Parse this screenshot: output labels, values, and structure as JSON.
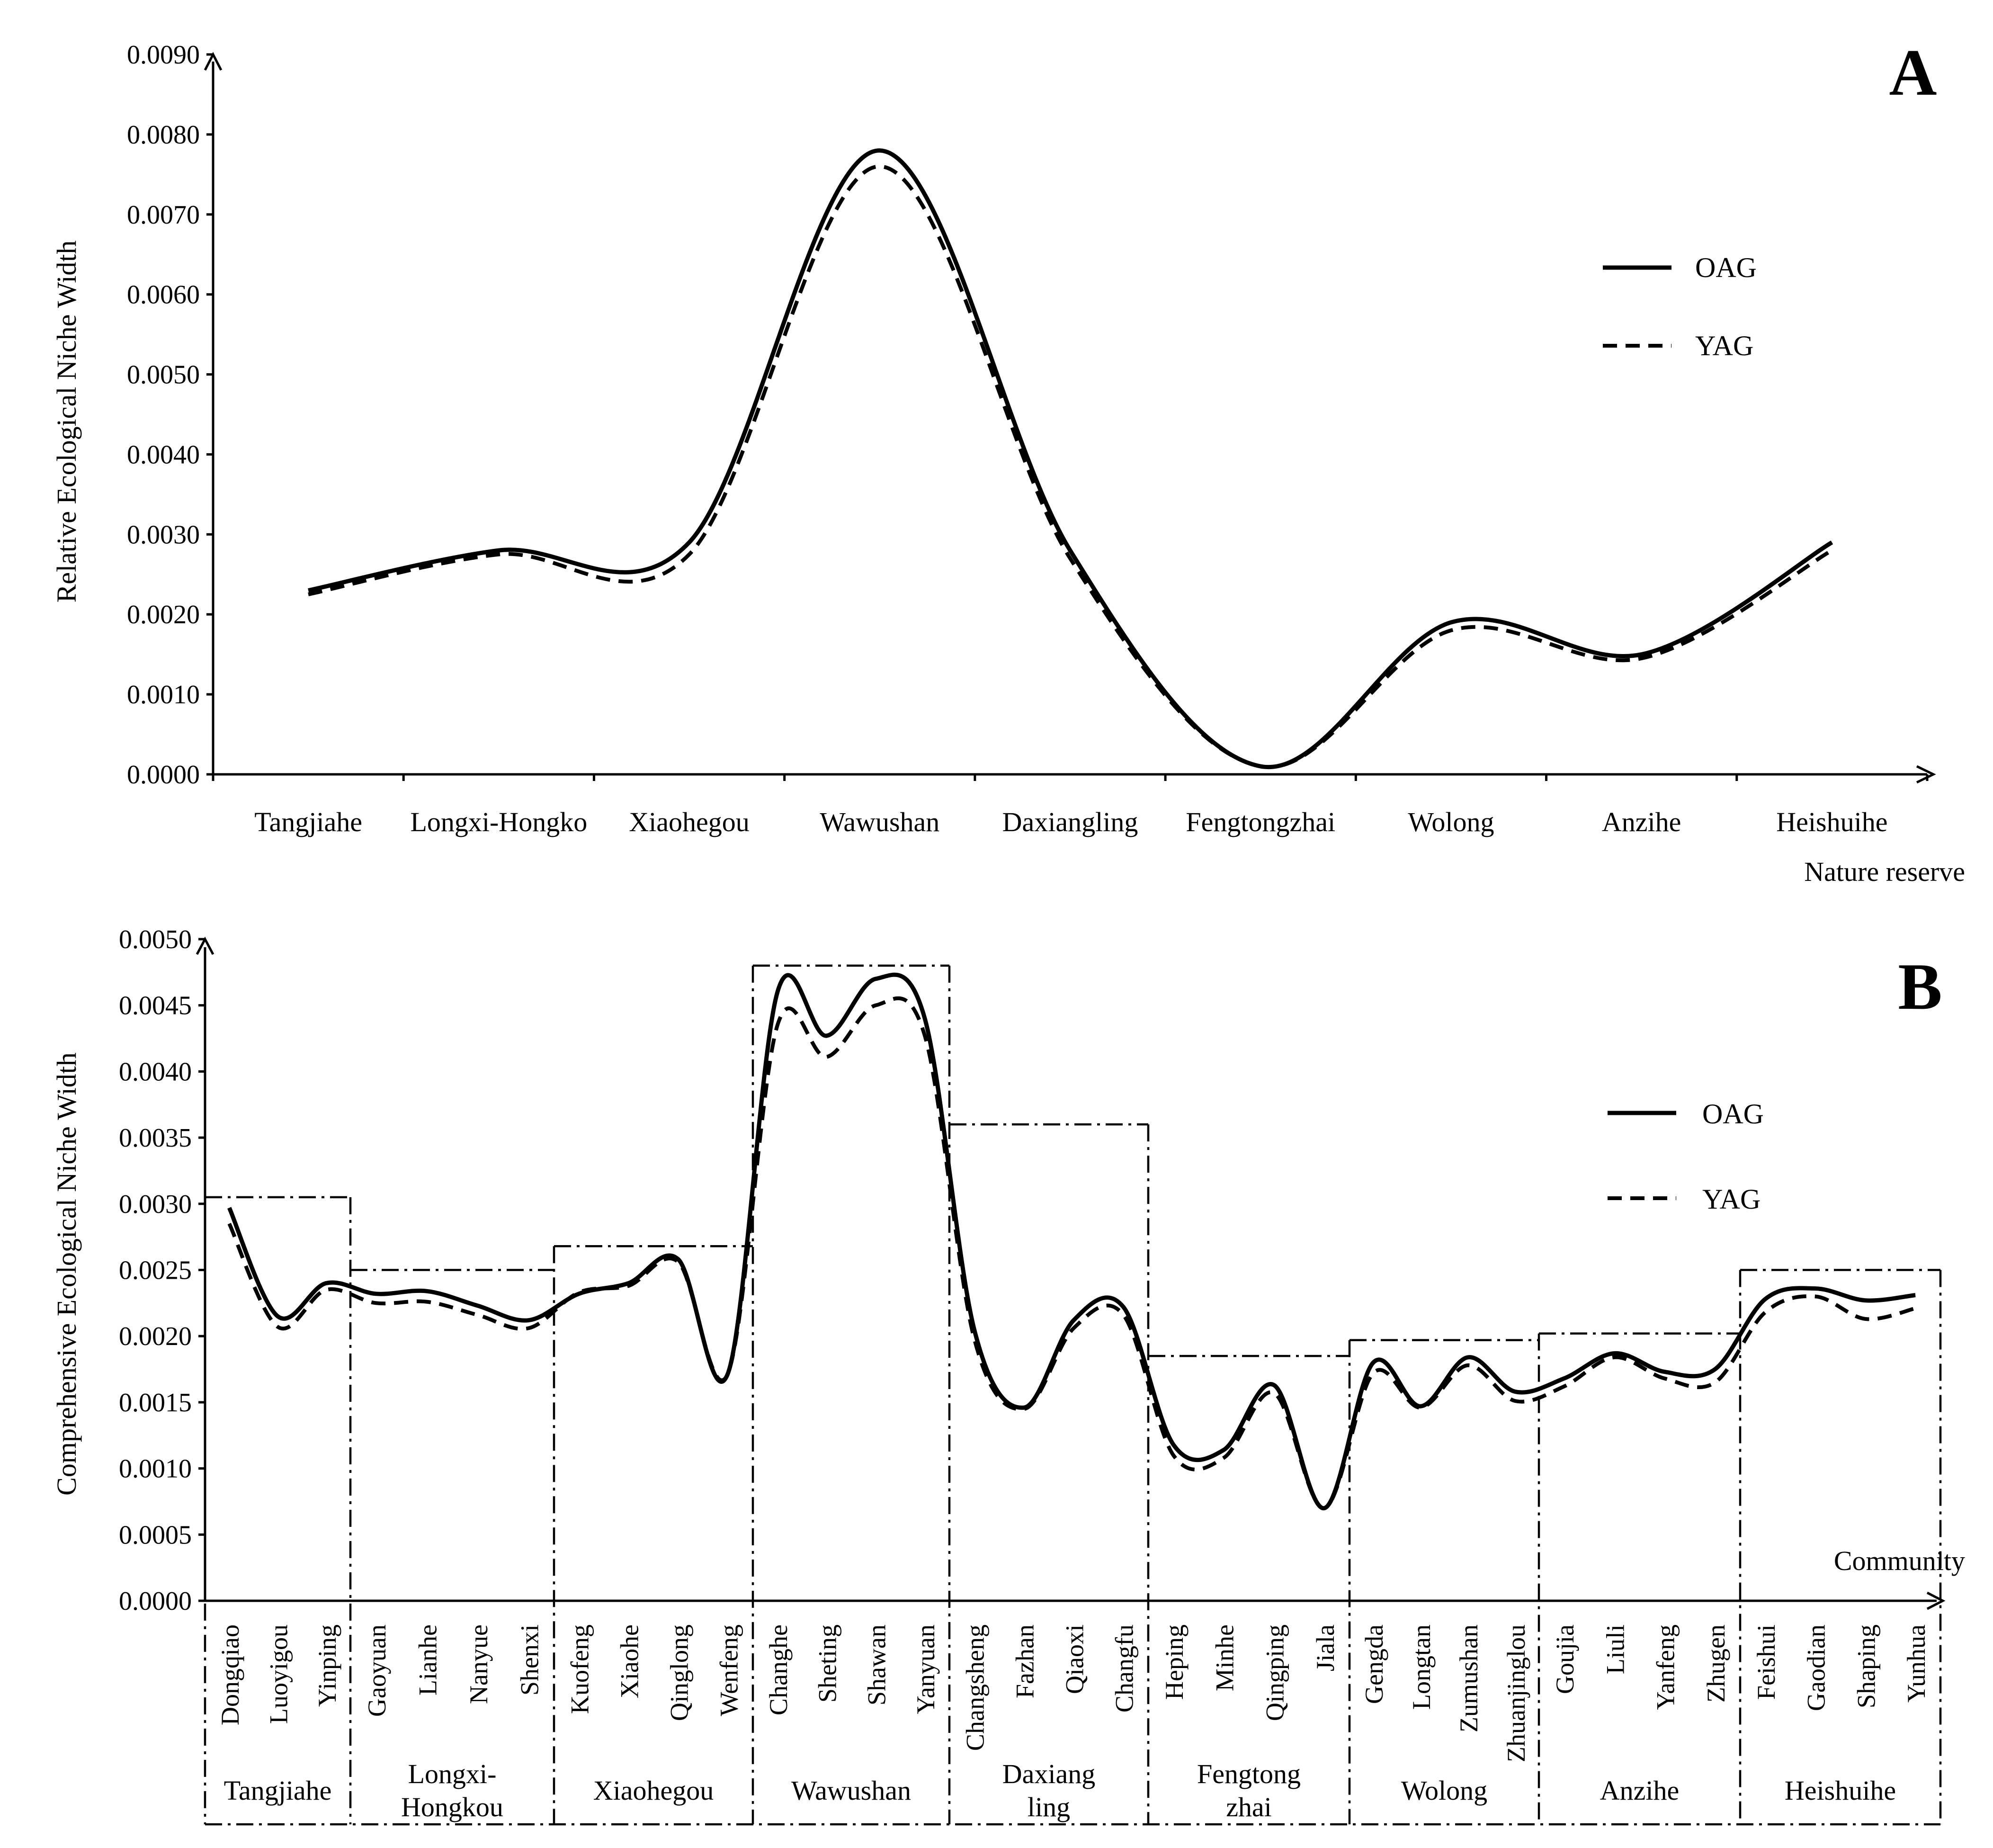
{
  "chart_data": [
    {
      "panel": "A",
      "type": "line",
      "ylabel": "Relative Ecological Niche Width",
      "xlabel": "Nature reserve",
      "ylim": [
        0,
        0.009
      ],
      "yticks": [
        "0.0000",
        "0.0010",
        "0.0020",
        "0.0030",
        "0.0040",
        "0.0050",
        "0.0060",
        "0.0070",
        "0.0080",
        "0.0090"
      ],
      "categories": [
        "Tangjiahe",
        "Longxi-Hongko",
        "Xiaohegou",
        "Wawushan",
        "Daxiangling",
        "Fengtongzhai",
        "Wolong",
        "Anzihe",
        "Heishuihe"
      ],
      "series": [
        {
          "name": "OAG",
          "values": [
            0.0023,
            0.0028,
            0.0029,
            0.0078,
            0.0028,
            0.0001,
            0.0019,
            0.0015,
            0.0029
          ]
        },
        {
          "name": "YAG",
          "values": [
            0.00225,
            0.00275,
            0.00275,
            0.0076,
            0.0027,
            0.0001,
            0.0018,
            0.00145,
            0.0028
          ]
        }
      ],
      "legend": [
        "OAG",
        "YAG"
      ],
      "legend_position": "right"
    },
    {
      "panel": "B",
      "type": "line",
      "ylabel": "Comprehensive Ecological Niche Width",
      "xlabel": "Community",
      "ylim": [
        0,
        0.005
      ],
      "yticks": [
        "0.0000",
        "0.0005",
        "0.0010",
        "0.0015",
        "0.0020",
        "0.0025",
        "0.0030",
        "0.0035",
        "0.0040",
        "0.0045",
        "0.0050"
      ],
      "categories": [
        "Dongqiao",
        "Luoyigou",
        "Yinping",
        "Gaoyuan",
        "Lianhe",
        "Nanyue",
        "Shenxi",
        "Kuofeng",
        "Xiaohe",
        "Qinglong",
        "Wenfeng",
        "Changhe",
        "Sheting",
        "Shawan",
        "Yanyuan",
        "Changsheng",
        "Fazhan",
        "Qiaoxi",
        "Changfu",
        "Heping",
        "Minhe",
        "Qingping",
        "Jiala",
        "Gengda",
        "Longtan",
        "Zumushan",
        "Zhuanjinglou",
        "Goujia",
        "Liuli",
        "Yanfeng",
        "Zhugen",
        "Feishui",
        "Gaodian",
        "Shaping",
        "Yunhua"
      ],
      "series": [
        {
          "name": "OAG",
          "values": [
            0.00297,
            0.00215,
            0.0024,
            0.00232,
            0.00234,
            0.00223,
            0.00212,
            0.00232,
            0.0024,
            0.00258,
            0.00172,
            0.0046,
            0.00427,
            0.0047,
            0.0044,
            0.00205,
            0.00146,
            0.00212,
            0.00222,
            0.00118,
            0.00114,
            0.00163,
            0.0007,
            0.0018,
            0.00147,
            0.00184,
            0.00158,
            0.00168,
            0.00187,
            0.00173,
            0.00175,
            0.00228,
            0.00236,
            0.00227,
            0.00231
          ]
        },
        {
          "name": "YAG",
          "values": [
            0.00285,
            0.00207,
            0.00235,
            0.00225,
            0.00226,
            0.00216,
            0.00206,
            0.00233,
            0.00238,
            0.00256,
            0.00172,
            0.00435,
            0.00411,
            0.0045,
            0.00427,
            0.00198,
            0.00145,
            0.00206,
            0.00216,
            0.0011,
            0.00108,
            0.00157,
            0.0007,
            0.00172,
            0.00146,
            0.00178,
            0.00151,
            0.00162,
            0.00184,
            0.00168,
            0.00165,
            0.00218,
            0.0023,
            0.00213,
            0.00221
          ]
        }
      ],
      "groups": [
        {
          "name": "Tangjiahe",
          "start": 0,
          "end": 2,
          "box_max": 0.00305
        },
        {
          "name": "Longxi-Hongkou",
          "start": 3,
          "end": 6,
          "box_max": 0.0025
        },
        {
          "name": "Xiaohegou",
          "start": 7,
          "end": 10,
          "box_max": 0.00268
        },
        {
          "name": "Wawushan",
          "start": 11,
          "end": 14,
          "box_max": 0.0048
        },
        {
          "name": "Daxiangling",
          "start": 15,
          "end": 18,
          "box_max": 0.0036
        },
        {
          "name": "Fengtongzhai",
          "start": 19,
          "end": 22,
          "box_max": 0.00185
        },
        {
          "name": "Wolong",
          "start": 23,
          "end": 26,
          "box_max": 0.00197
        },
        {
          "name": "Anzihe",
          "start": 27,
          "end": 30,
          "box_max": 0.00202
        },
        {
          "name": "Heishuihe",
          "start": 31,
          "end": 34,
          "box_max": 0.0025
        }
      ],
      "group_labels": [
        [
          "Tangjiahe"
        ],
        [
          "Longxi-",
          "Hongkou"
        ],
        [
          "Xiaohegou"
        ],
        [
          "Wawushan"
        ],
        [
          "Daxiang",
          "ling"
        ],
        [
          "Fengtong",
          "zhai"
        ],
        [
          "Wolong"
        ],
        [
          "Anzihe"
        ],
        [
          "Heishuihe"
        ]
      ],
      "legend": [
        "OAG",
        "YAG"
      ],
      "legend_position": "right"
    }
  ]
}
